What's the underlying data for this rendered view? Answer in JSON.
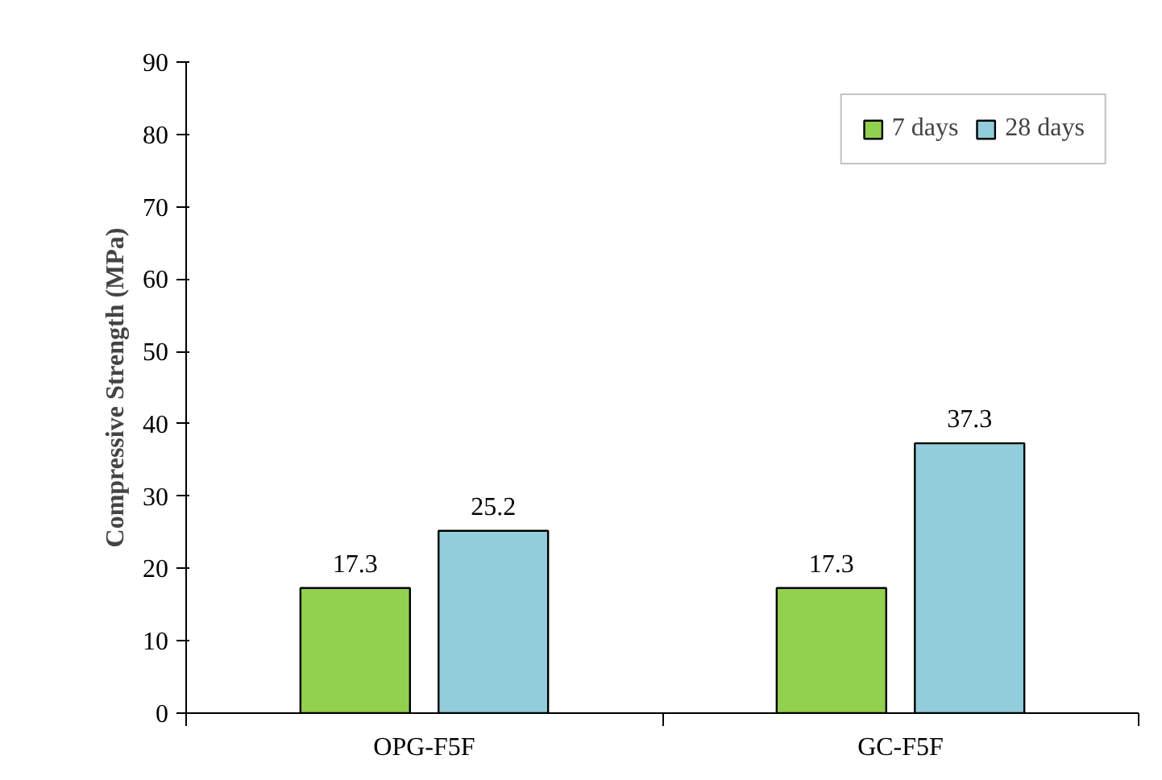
{
  "chart_data": {
    "type": "bar",
    "ylabel": "Compressive Strength (MPa)",
    "categories": [
      "OPG-F5F",
      "GC-F5F"
    ],
    "series": [
      {
        "name": "7 days",
        "color": "#92d050",
        "values": [
          17.3,
          17.3
        ]
      },
      {
        "name": "28 days",
        "color": "#92cddc",
        "values": [
          25.2,
          37.3
        ]
      }
    ],
    "ylim": [
      0,
      90
    ],
    "yticks": [
      0,
      10,
      20,
      30,
      40,
      50,
      60,
      70,
      80,
      90
    ],
    "grid": false,
    "legend": "top right",
    "data_labels": true
  }
}
